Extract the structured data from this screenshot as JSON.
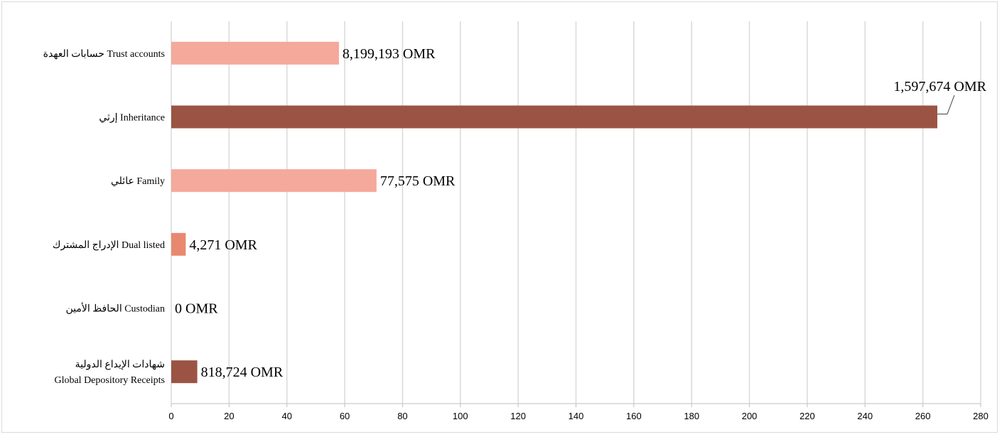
{
  "chart_data": {
    "type": "bar",
    "orientation": "horizontal",
    "categories": [
      [
        "حسابات العهدة  Trust accounts"
      ],
      [
        "إرثي Inheritance"
      ],
      [
        "عائلي Family"
      ],
      [
        "الإدراج المشترك  Dual listed"
      ],
      [
        "الحافظ الأمين   Custodian"
      ],
      [
        "شهادات الإيداع الدولية",
        "Global Depository Receipts"
      ]
    ],
    "values": [
      58,
      265,
      71,
      5,
      0,
      9
    ],
    "data_labels": [
      "8,199,193 OMR",
      "1,597,674 OMR",
      "77,575 OMR",
      "4,271 OMR",
      "0 OMR",
      "818,724 OMR"
    ],
    "bar_colors": [
      "#f4a99b",
      "#9b5444",
      "#f4a99b",
      "#e8896f",
      "#e8896f",
      "#9b5444"
    ],
    "xlim": [
      0,
      280
    ],
    "x_ticks": [
      "0",
      "20",
      "40",
      "60",
      "80",
      "100",
      "120",
      "140",
      "160",
      "180",
      "200",
      "220",
      "240",
      "260",
      "280"
    ],
    "grid": "vertical",
    "title": "",
    "xlabel": "",
    "ylabel": ""
  }
}
